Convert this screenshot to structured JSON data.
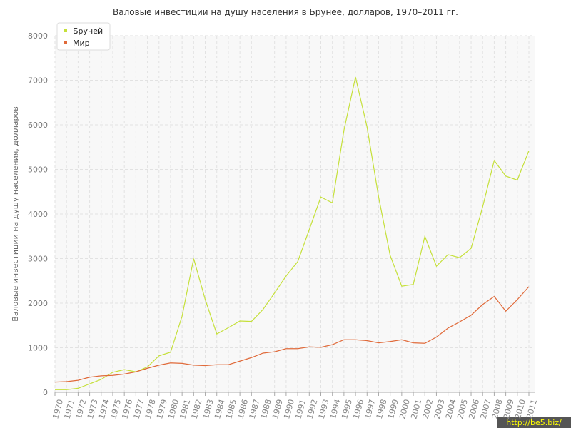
{
  "chart_data": {
    "type": "line",
    "title": "Валовые инвестиции на душу населения в Брунее, долларов, 1970–2011 гг.",
    "y_label": "Валовые инвестиции на душу населения, долларов",
    "categories": [
      "1970",
      "1971",
      "1972",
      "1973",
      "1974",
      "1975",
      "1976",
      "1977",
      "1978",
      "1979",
      "1980",
      "1981",
      "1982",
      "1983",
      "1984",
      "1985",
      "1986",
      "1987",
      "1988",
      "1989",
      "1990",
      "1991",
      "1992",
      "1993",
      "1994",
      "1995",
      "1996",
      "1997",
      "1998",
      "1999",
      "2000",
      "2001",
      "2002",
      "2003",
      "2004",
      "2005",
      "2006",
      "2007",
      "2008",
      "2009",
      "2010",
      "2011"
    ],
    "series": [
      {
        "name": "Бруней",
        "color": "#c5e03a",
        "values": [
          60,
          60,
          90,
          190,
          290,
          450,
          510,
          460,
          570,
          820,
          900,
          1710,
          3000,
          2080,
          1310,
          1450,
          1600,
          1590,
          1860,
          2230,
          2610,
          2930,
          3650,
          4380,
          4250,
          5880,
          7070,
          5950,
          4380,
          3070,
          2380,
          2420,
          3500,
          2830,
          3090,
          3020,
          3230,
          4160,
          5200,
          4850,
          4760,
          5420
        ]
      },
      {
        "name": "Мир",
        "color": "#e06a3a",
        "values": [
          230,
          240,
          270,
          340,
          370,
          380,
          410,
          460,
          540,
          610,
          660,
          650,
          610,
          600,
          620,
          620,
          700,
          780,
          880,
          910,
          980,
          980,
          1020,
          1010,
          1070,
          1180,
          1180,
          1160,
          1110,
          1140,
          1180,
          1110,
          1100,
          1240,
          1440,
          1580,
          1730,
          1970,
          2150,
          1820,
          2080,
          2370
        ]
      }
    ],
    "ylim": [
      0,
      8000
    ],
    "yticks": [
      0,
      1000,
      2000,
      3000,
      4000,
      5000,
      6000,
      7000,
      8000
    ],
    "grid": true,
    "legend": "top-left",
    "watermark": "http://be5.biz/"
  }
}
